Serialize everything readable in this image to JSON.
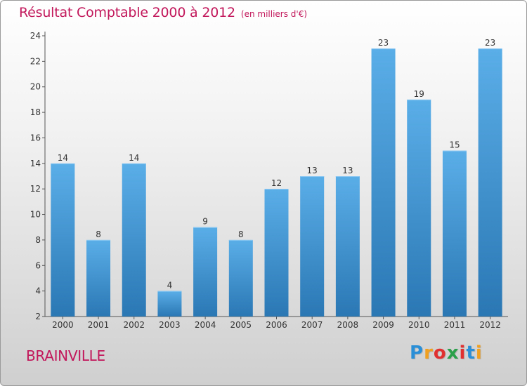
{
  "header": {
    "title": "Résultat Comptable 2000 à 2012",
    "subtitle": "(en milliers d'€)"
  },
  "footer": {
    "town": "BRAINVILLE",
    "logo_text": "Proxiti",
    "logo_colors": [
      "#2a8fd6",
      "#f0a020",
      "#e03030",
      "#2aa04a",
      "#e03030",
      "#2a8fd6",
      "#f0a020"
    ]
  },
  "colors": {
    "bar_top": "#5aaee8",
    "bar_bottom": "#2a77b4",
    "accent": "#c2185b"
  },
  "chart_data": {
    "type": "bar",
    "title": "Résultat Comptable 2000 à 2012",
    "subtitle": "(en milliers d'€)",
    "xlabel": "",
    "ylabel": "",
    "categories": [
      "2000",
      "2001",
      "2002",
      "2003",
      "2004",
      "2005",
      "2006",
      "2007",
      "2008",
      "2009",
      "2010",
      "2011",
      "2012"
    ],
    "values": [
      14,
      8,
      14,
      4,
      9,
      8,
      12,
      13,
      13,
      23,
      19,
      15,
      23
    ],
    "ylim": [
      2,
      24
    ],
    "yticks": [
      2,
      4,
      6,
      8,
      10,
      12,
      14,
      16,
      18,
      20,
      22,
      24
    ],
    "grid": false,
    "legend": "none"
  }
}
